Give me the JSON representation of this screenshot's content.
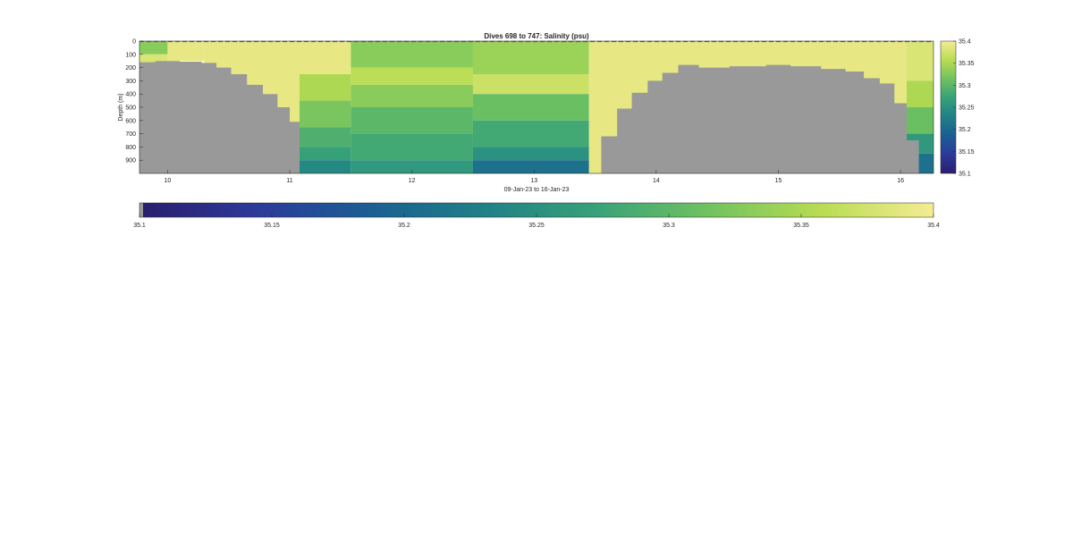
{
  "chart_data": {
    "type": "heatmap",
    "title": "Dives 698 to 747: Salinity (psu)",
    "xlabel": "09-Jan-23 to 16-Jan-23",
    "ylabel": "Depth (m)",
    "xlim": [
      9.77,
      16.27
    ],
    "ylim": [
      0,
      1000
    ],
    "y_reversed": true,
    "x_ticks": [
      10,
      11,
      12,
      13,
      14,
      15,
      16
    ],
    "x_tick_labels": [
      "10",
      "11",
      "12",
      "13",
      "14",
      "15",
      "16"
    ],
    "y_ticks": [
      0,
      100,
      200,
      300,
      400,
      500,
      600,
      700,
      800,
      900
    ],
    "y_tick_labels": [
      "0",
      "100",
      "200",
      "300",
      "400",
      "500",
      "600",
      "700",
      "800",
      "900"
    ],
    "colorbar_right": {
      "range": [
        35.1,
        35.4
      ],
      "ticks": [
        35.1,
        35.15,
        35.2,
        35.25,
        35.3,
        35.35,
        35.4
      ],
      "tick_labels": [
        "35.1",
        "35.15",
        "35.2",
        "35.25",
        "35.3",
        "35.35",
        "35.4"
      ]
    },
    "colorbar_bottom": {
      "range": [
        35.1,
        35.4
      ],
      "ticks": [
        35.1,
        35.15,
        35.2,
        35.25,
        35.3,
        35.35,
        35.4
      ],
      "tick_labels": [
        "35.1",
        "35.15",
        "35.2",
        "35.25",
        "35.3",
        "35.35",
        "35.4"
      ],
      "includes_no_data_swatch": true
    },
    "no_data_color": "#999999",
    "colormap": [
      "#2a1e6e",
      "#2c3a9a",
      "#1b5e93",
      "#1f8087",
      "#37a179",
      "#70c260",
      "#b8dc52",
      "#f5ec93"
    ],
    "seafloor_profile": [
      {
        "x": 9.77,
        "depth": 160
      },
      {
        "x": 9.9,
        "depth": 150
      },
      {
        "x": 10.1,
        "depth": 155
      },
      {
        "x": 10.28,
        "depth": 165
      },
      {
        "x": 10.4,
        "depth": 200
      },
      {
        "x": 10.52,
        "depth": 250
      },
      {
        "x": 10.65,
        "depth": 330
      },
      {
        "x": 10.78,
        "depth": 400
      },
      {
        "x": 10.9,
        "depth": 500
      },
      {
        "x": 11.0,
        "depth": 610
      },
      {
        "x": 11.08,
        "depth": 1000
      },
      {
        "x": 13.45,
        "depth": 1000
      },
      {
        "x": 13.55,
        "depth": 720
      },
      {
        "x": 13.68,
        "depth": 510
      },
      {
        "x": 13.8,
        "depth": 390
      },
      {
        "x": 13.93,
        "depth": 300
      },
      {
        "x": 14.05,
        "depth": 240
      },
      {
        "x": 14.18,
        "depth": 180
      },
      {
        "x": 14.35,
        "depth": 200
      },
      {
        "x": 14.6,
        "depth": 190
      },
      {
        "x": 14.9,
        "depth": 180
      },
      {
        "x": 15.1,
        "depth": 190
      },
      {
        "x": 15.35,
        "depth": 210
      },
      {
        "x": 15.55,
        "depth": 230
      },
      {
        "x": 15.7,
        "depth": 280
      },
      {
        "x": 15.83,
        "depth": 320
      },
      {
        "x": 15.95,
        "depth": 470
      },
      {
        "x": 16.05,
        "depth": 750
      },
      {
        "x": 16.15,
        "depth": 1000
      }
    ],
    "salinity_field": [
      {
        "x_range": [
          9.77,
          10.0
        ],
        "layers": [
          {
            "d": [
              0,
              100
            ],
            "v": 35.33
          },
          {
            "d": [
              100,
              200
            ],
            "v": 35.38
          }
        ]
      },
      {
        "x_range": [
          10.0,
          10.3
        ],
        "layers": [
          {
            "d": [
              0,
              150
            ],
            "v": 35.39
          }
        ]
      },
      {
        "x_range": [
          10.3,
          11.08
        ],
        "layers": [
          {
            "d": [
              0,
              1000
            ],
            "v": 35.39
          }
        ]
      },
      {
        "x_range": [
          11.08,
          11.5
        ],
        "layers": [
          {
            "d": [
              0,
              250
            ],
            "v": 35.39
          },
          {
            "d": [
              250,
              450
            ],
            "v": 35.35
          },
          {
            "d": [
              450,
              650
            ],
            "v": 35.32
          },
          {
            "d": [
              650,
              800
            ],
            "v": 35.29
          },
          {
            "d": [
              800,
              900
            ],
            "v": 35.27
          },
          {
            "d": [
              900,
              1000
            ],
            "v": 35.24
          }
        ]
      },
      {
        "x_range": [
          11.5,
          12.5
        ],
        "layers": [
          {
            "d": [
              0,
              200
            ],
            "v": 35.33
          },
          {
            "d": [
              200,
              330
            ],
            "v": 35.36
          },
          {
            "d": [
              330,
              500
            ],
            "v": 35.33
          },
          {
            "d": [
              500,
              700
            ],
            "v": 35.3
          },
          {
            "d": [
              700,
              900
            ],
            "v": 35.28
          },
          {
            "d": [
              900,
              1000
            ],
            "v": 35.26
          }
        ]
      },
      {
        "x_range": [
          12.5,
          13.45
        ],
        "layers": [
          {
            "d": [
              0,
              250
            ],
            "v": 35.34
          },
          {
            "d": [
              250,
              400
            ],
            "v": 35.37
          },
          {
            "d": [
              400,
              600
            ],
            "v": 35.31
          },
          {
            "d": [
              600,
              800
            ],
            "v": 35.28
          },
          {
            "d": [
              800,
              900
            ],
            "v": 35.25
          },
          {
            "d": [
              900,
              1000
            ],
            "v": 35.21
          }
        ]
      },
      {
        "x_range": [
          13.45,
          16.05
        ],
        "layers": [
          {
            "d": [
              0,
              1000
            ],
            "v": 35.39
          }
        ]
      },
      {
        "x_range": [
          16.05,
          16.27
        ],
        "layers": [
          {
            "d": [
              0,
              300
            ],
            "v": 35.38
          },
          {
            "d": [
              300,
              500
            ],
            "v": 35.35
          },
          {
            "d": [
              500,
              700
            ],
            "v": 35.31
          },
          {
            "d": [
              700,
              850
            ],
            "v": 35.26
          },
          {
            "d": [
              850,
              1000
            ],
            "v": 35.21
          }
        ]
      }
    ]
  }
}
